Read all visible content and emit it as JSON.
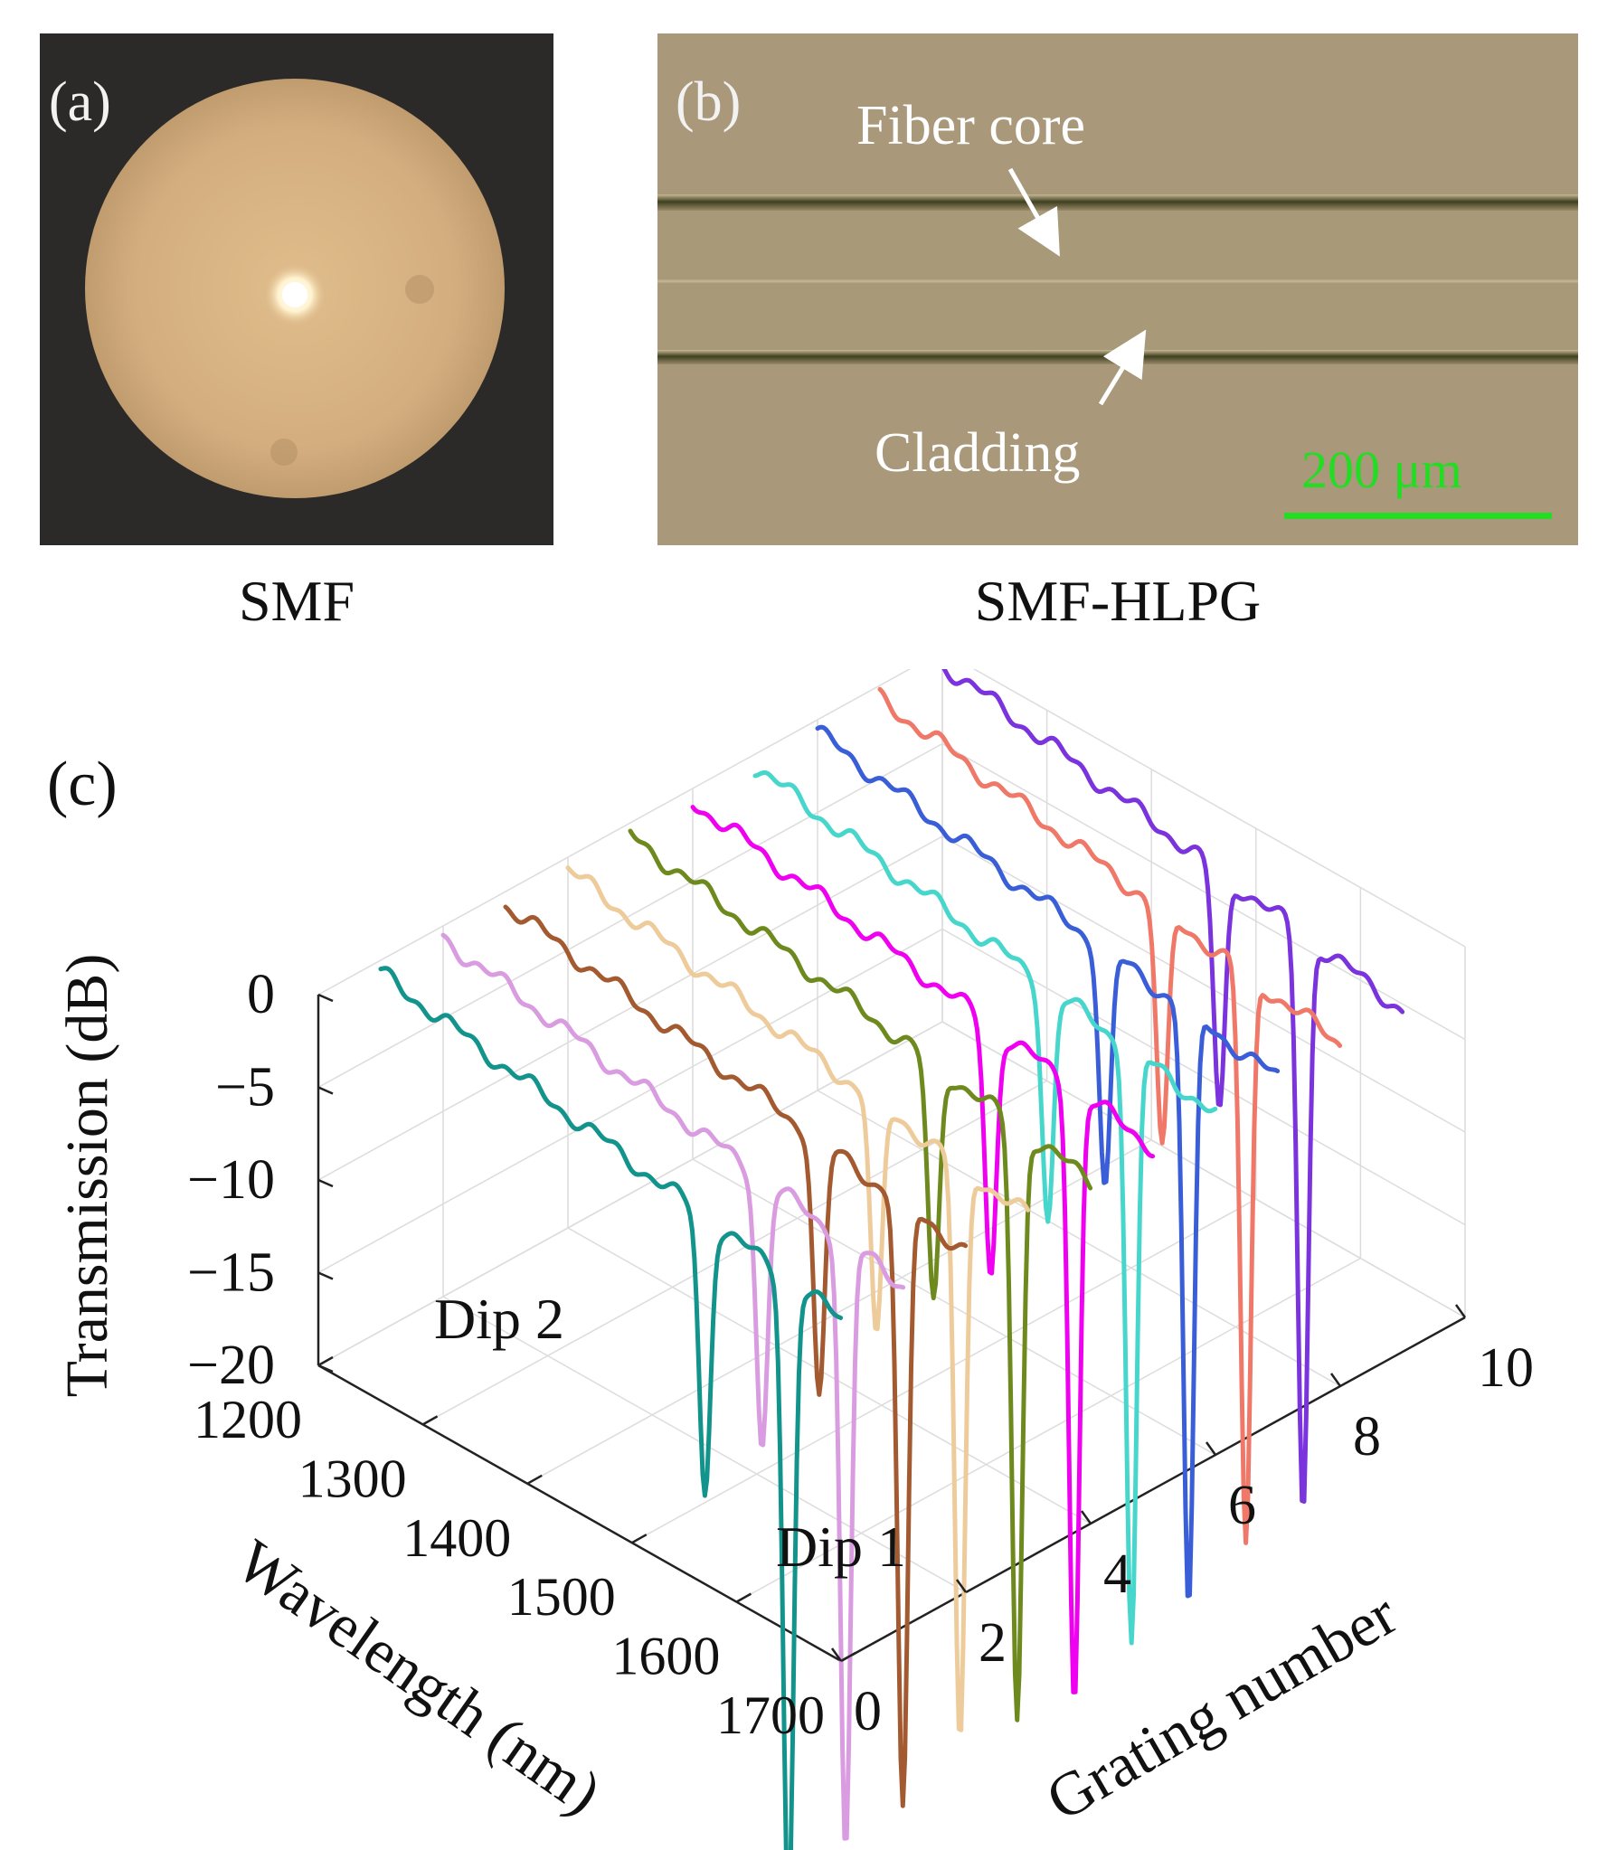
{
  "panel_a": {
    "label": "(a)",
    "caption": "SMF"
  },
  "panel_b": {
    "label": "(b)",
    "caption": "SMF-HLPG",
    "annotation_core": "Fiber core",
    "annotation_cladding": "Cladding",
    "scale_bar": "200 μm",
    "scale_bar_color": "#22dd22"
  },
  "panel_c": {
    "label": "(c)"
  },
  "chart_data": {
    "type": "line",
    "projection": "3d-waterfall",
    "zlabel": "Transmission (dB)",
    "xlabel": "Wavelength (nm)",
    "ylabel": "Grating number",
    "xlim": [
      1200,
      1700
    ],
    "ylim": [
      0,
      10
    ],
    "zlim": [
      -20,
      0
    ],
    "x_ticks": [
      1200,
      1300,
      1400,
      1500,
      1600,
      1700
    ],
    "y_ticks": [
      0,
      2,
      4,
      6,
      8,
      10
    ],
    "z_ticks": [
      0,
      -5,
      -10,
      -15,
      -20
    ],
    "z_tick_labels": [
      "0",
      "−5",
      "−10",
      "−15",
      "−20"
    ],
    "grid": true,
    "annotations": [
      "Dip 2",
      "Dip 1"
    ],
    "series": [
      {
        "color": "#12948c",
        "dip2": {
          "wl": 1510,
          "depth": -15.0
        },
        "dip1": {
          "wl": 1590,
          "depth": -34.0
        }
      },
      {
        "color": "#d99ce0",
        "dip2": {
          "wl": 1505,
          "depth": -14.5
        },
        "dip1": {
          "wl": 1585,
          "depth": -33.0
        }
      },
      {
        "color": "#a35a30",
        "dip2": {
          "wl": 1500,
          "depth": -14.0
        },
        "dip1": {
          "wl": 1580,
          "depth": -33.0
        }
      },
      {
        "color": "#eecb9a",
        "dip2": {
          "wl": 1495,
          "depth": -13.0
        },
        "dip1": {
          "wl": 1575,
          "depth": -31.5
        }
      },
      {
        "color": "#6e8a1e",
        "dip2": {
          "wl": 1490,
          "depth": -13.0
        },
        "dip1": {
          "wl": 1570,
          "depth": -32.0
        }
      },
      {
        "color": "#f000f0",
        "dip2": {
          "wl": 1485,
          "depth": -13.5
        },
        "dip1": {
          "wl": 1565,
          "depth": -33.0
        }
      },
      {
        "color": "#46d6cc",
        "dip2": {
          "wl": 1480,
          "depth": -12.5
        },
        "dip1": {
          "wl": 1560,
          "depth": -32.0
        }
      },
      {
        "color": "#3a5ed8",
        "dip2": {
          "wl": 1475,
          "depth": -13.0
        },
        "dip1": {
          "wl": 1555,
          "depth": -32.5
        }
      },
      {
        "color": "#f07868",
        "dip2": {
          "wl": 1470,
          "depth": -13.0
        },
        "dip1": {
          "wl": 1550,
          "depth": -31.0
        }
      },
      {
        "color": "#7a33dd",
        "dip2": {
          "wl": 1465,
          "depth": -13.0
        },
        "dip1": {
          "wl": 1545,
          "depth": -31.0
        }
      }
    ]
  }
}
